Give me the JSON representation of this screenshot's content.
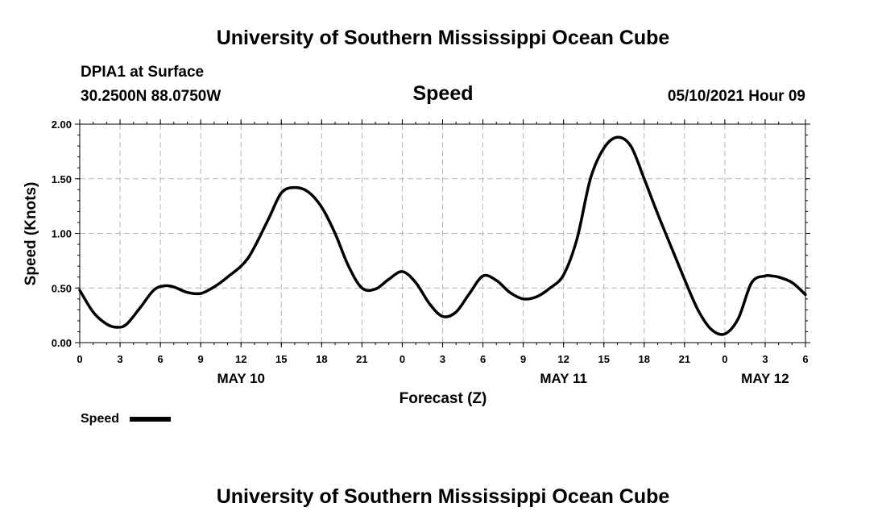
{
  "header": {
    "title": "University of Southern Mississippi Ocean Cube",
    "station": "DPIA1 at Surface",
    "location": "30.2500N  88.0750W",
    "datetime": "05/10/2021 Hour 09"
  },
  "footer": {
    "title": "University of Southern Mississippi Ocean Cube"
  },
  "chart_data": {
    "type": "line",
    "title": "Speed",
    "xlabel": "Forecast (Z)",
    "ylabel": "Speed (Knots)",
    "xlim": [
      0,
      54
    ],
    "ylim": [
      0,
      2.0
    ],
    "yticks": [
      "0.00",
      "0.50",
      "1.00",
      "1.50",
      "2.00"
    ],
    "xtick_labels": [
      "0",
      "3",
      "6",
      "9",
      "12",
      "15",
      "18",
      "21",
      "0",
      "3",
      "6",
      "9",
      "12",
      "15",
      "18",
      "21",
      "0",
      "3",
      "6"
    ],
    "day_labels": [
      {
        "label": "MAY 10",
        "hour": 12
      },
      {
        "label": "MAY 11",
        "hour": 36
      },
      {
        "label": "MAY 12",
        "hour": 51
      }
    ],
    "grid": true,
    "legend": "bottom-left",
    "series": [
      {
        "name": "Speed",
        "color": "#000000",
        "x": [
          0,
          1,
          2,
          2.8,
          3.5,
          4.5,
          5.5,
          6.3,
          7,
          8,
          9,
          10,
          11,
          12.5,
          14,
          15,
          16,
          17,
          18,
          19,
          20,
          21,
          22,
          23,
          24,
          25,
          26,
          27,
          28,
          29,
          30,
          31,
          32,
          33,
          34,
          35,
          36,
          37,
          38,
          39,
          40,
          41,
          42,
          43,
          44,
          45,
          46,
          47,
          48,
          49,
          50,
          51,
          51.5,
          52,
          53,
          54
        ],
        "values": [
          0.48,
          0.28,
          0.17,
          0.14,
          0.17,
          0.32,
          0.48,
          0.52,
          0.51,
          0.46,
          0.45,
          0.51,
          0.6,
          0.77,
          1.12,
          1.37,
          1.42,
          1.38,
          1.24,
          1.0,
          0.7,
          0.5,
          0.49,
          0.58,
          0.65,
          0.55,
          0.36,
          0.24,
          0.28,
          0.45,
          0.61,
          0.57,
          0.46,
          0.4,
          0.42,
          0.5,
          0.62,
          0.95,
          1.5,
          1.78,
          1.88,
          1.8,
          1.5,
          1.18,
          0.88,
          0.58,
          0.3,
          0.12,
          0.08,
          0.22,
          0.55,
          0.61,
          0.61,
          0.6,
          0.55,
          0.44
        ]
      }
    ]
  }
}
